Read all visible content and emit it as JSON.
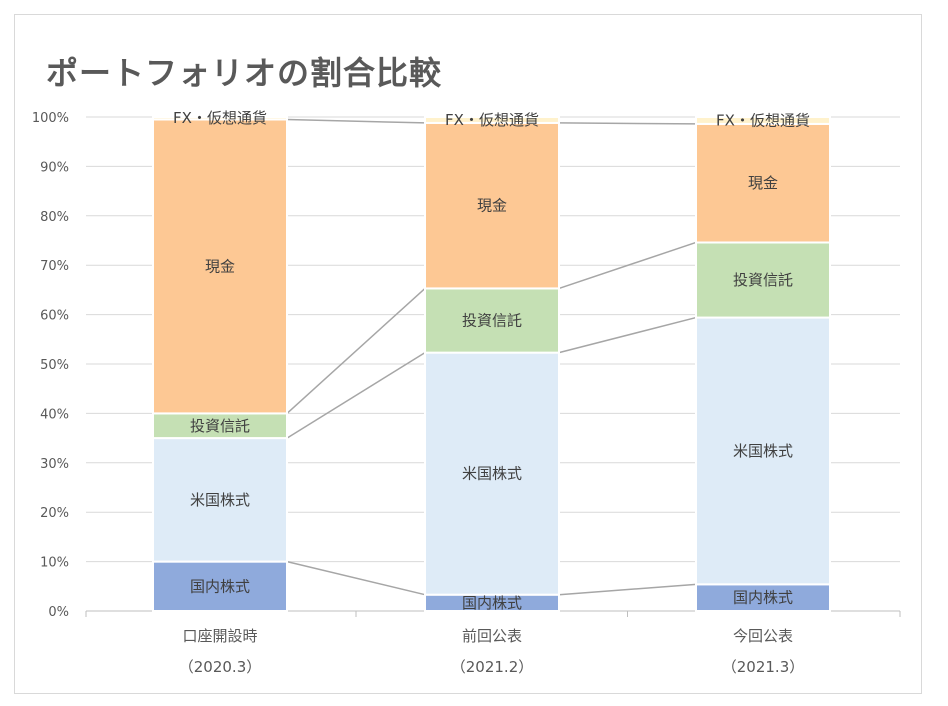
{
  "chart_data": {
    "type": "bar",
    "stacked": true,
    "percent": true,
    "title": "ポートフォリオの割合比較",
    "categories": [
      {
        "name": "口座開設時",
        "sub": "（2020.3）"
      },
      {
        "name": "前回公表",
        "sub": "（2021.2）"
      },
      {
        "name": "今回公表",
        "sub": "（2021.3）"
      }
    ],
    "series": [
      {
        "name": "国内株式",
        "color": "#8faadc",
        "values": [
          10,
          3.3,
          5.4
        ]
      },
      {
        "name": "米国株式",
        "color": "#deebf7",
        "values": [
          25,
          49,
          54
        ]
      },
      {
        "name": "投資信託",
        "color": "#c5e0b4",
        "values": [
          5,
          13,
          15.2
        ]
      },
      {
        "name": "現金",
        "color": "#fdc894",
        "values": [
          59.5,
          33.5,
          24
        ]
      },
      {
        "name": "FX・仮想通貨",
        "color": "#fff2cc",
        "values": [
          0.5,
          1.2,
          1.4
        ]
      }
    ],
    "y_ticks": [
      "0%",
      "10%",
      "20%",
      "30%",
      "40%",
      "50%",
      "60%",
      "70%",
      "80%",
      "90%",
      "100%"
    ],
    "ylim": [
      0,
      100
    ],
    "grid": true,
    "series_lines": true
  }
}
